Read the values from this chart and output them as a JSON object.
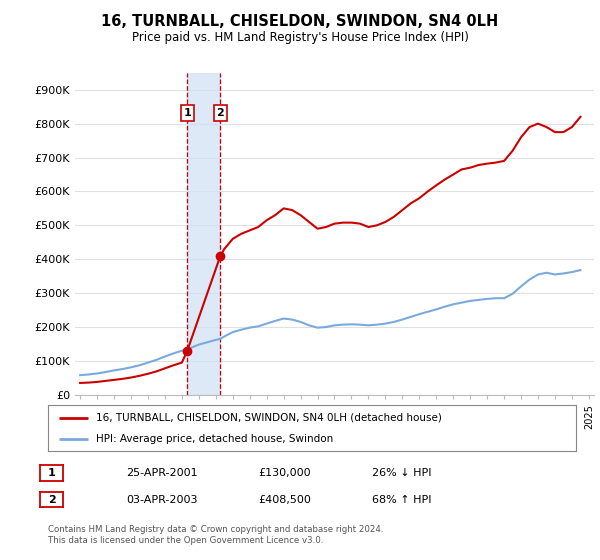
{
  "title": "16, TURNBALL, CHISELDON, SWINDON, SN4 0LH",
  "subtitle": "Price paid vs. HM Land Registry's House Price Index (HPI)",
  "ylabel_ticks": [
    "£0",
    "£100K",
    "£200K",
    "£300K",
    "£400K",
    "£500K",
    "£600K",
    "£700K",
    "£800K",
    "£900K"
  ],
  "ytick_values": [
    0,
    100000,
    200000,
    300000,
    400000,
    500000,
    600000,
    700000,
    800000,
    900000
  ],
  "ylim": [
    0,
    950000
  ],
  "x_start_year": 1995,
  "x_end_year": 2025,
  "sale1_date": 2001.32,
  "sale1_price": 130000,
  "sale2_date": 2003.26,
  "sale2_price": 408500,
  "sale1_label": "1",
  "sale2_label": "2",
  "highlight_color": "#cfe0f5",
  "highlight_alpha": 0.7,
  "red_line_color": "#cc0000",
  "blue_line_color": "#7aaadd",
  "vertical_line_color": "#cc0000",
  "legend1_text": "16, TURNBALL, CHISELDON, SWINDON, SN4 0LH (detached house)",
  "legend2_text": "HPI: Average price, detached house, Swindon",
  "table_row1": [
    "1",
    "25-APR-2001",
    "£130,000",
    "26% ↓ HPI"
  ],
  "table_row2": [
    "2",
    "03-APR-2003",
    "£408,500",
    "68% ↑ HPI"
  ],
  "footnote": "Contains HM Land Registry data © Crown copyright and database right 2024.\nThis data is licensed under the Open Government Licence v3.0.",
  "bg_color": "#ffffff",
  "grid_color": "#e0e0e0",
  "hpi_x": [
    1995.0,
    1995.5,
    1996.0,
    1996.5,
    1997.0,
    1997.5,
    1998.0,
    1998.5,
    1999.0,
    1999.5,
    2000.0,
    2000.5,
    2001.0,
    2001.32,
    2001.5,
    2002.0,
    2002.5,
    2003.0,
    2003.26,
    2003.5,
    2004.0,
    2004.5,
    2005.0,
    2005.5,
    2006.0,
    2006.5,
    2007.0,
    2007.5,
    2008.0,
    2008.5,
    2009.0,
    2009.5,
    2010.0,
    2010.5,
    2011.0,
    2011.5,
    2012.0,
    2012.5,
    2013.0,
    2013.5,
    2014.0,
    2014.5,
    2015.0,
    2015.5,
    2016.0,
    2016.5,
    2017.0,
    2017.5,
    2018.0,
    2018.5,
    2019.0,
    2019.5,
    2020.0,
    2020.5,
    2021.0,
    2021.5,
    2022.0,
    2022.5,
    2023.0,
    2023.5,
    2024.0,
    2024.5
  ],
  "hpi_y": [
    58000,
    60000,
    63000,
    67000,
    72000,
    76000,
    81000,
    87000,
    95000,
    103000,
    113000,
    122000,
    130000,
    133000,
    138000,
    148000,
    155000,
    162000,
    165000,
    172000,
    185000,
    192000,
    198000,
    202000,
    210000,
    218000,
    225000,
    222000,
    215000,
    205000,
    198000,
    200000,
    205000,
    207000,
    208000,
    207000,
    205000,
    207000,
    210000,
    215000,
    222000,
    230000,
    238000,
    245000,
    252000,
    260000,
    267000,
    272000,
    277000,
    280000,
    283000,
    285000,
    285000,
    298000,
    320000,
    340000,
    355000,
    360000,
    355000,
    358000,
    362000,
    368000
  ],
  "property_x": [
    1995.0,
    1995.5,
    1996.0,
    1996.5,
    1997.0,
    1997.5,
    1998.0,
    1998.5,
    1999.0,
    1999.5,
    2000.0,
    2000.5,
    2001.0,
    2001.32,
    2003.26,
    2003.5,
    2004.0,
    2004.5,
    2005.0,
    2005.5,
    2006.0,
    2006.5,
    2007.0,
    2007.5,
    2008.0,
    2008.5,
    2009.0,
    2009.5,
    2010.0,
    2010.5,
    2011.0,
    2011.5,
    2012.0,
    2012.5,
    2013.0,
    2013.5,
    2014.0,
    2014.5,
    2015.0,
    2015.5,
    2016.0,
    2016.5,
    2017.0,
    2017.5,
    2018.0,
    2018.5,
    2019.0,
    2019.5,
    2020.0,
    2020.5,
    2021.0,
    2021.5,
    2022.0,
    2022.5,
    2023.0,
    2023.5,
    2024.0,
    2024.5
  ],
  "property_y": [
    35000,
    36000,
    38000,
    41000,
    44000,
    47000,
    51000,
    56000,
    62000,
    69000,
    78000,
    87000,
    95000,
    130000,
    408500,
    430000,
    460000,
    475000,
    485000,
    495000,
    515000,
    530000,
    550000,
    545000,
    530000,
    510000,
    490000,
    495000,
    505000,
    508000,
    508000,
    505000,
    495000,
    500000,
    510000,
    525000,
    545000,
    565000,
    580000,
    600000,
    618000,
    635000,
    650000,
    665000,
    670000,
    678000,
    682000,
    685000,
    690000,
    720000,
    760000,
    790000,
    800000,
    790000,
    775000,
    775000,
    790000,
    820000
  ]
}
